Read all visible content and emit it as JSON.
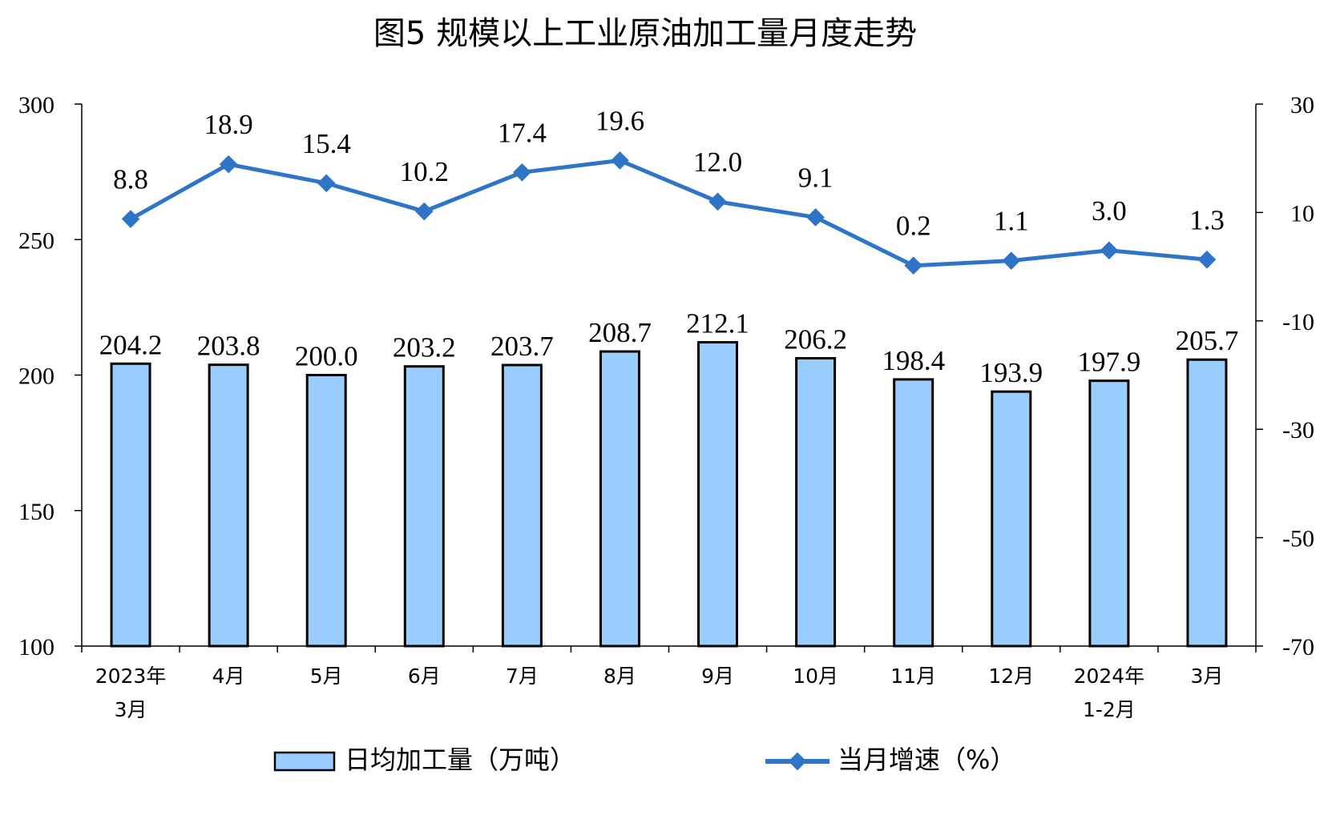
{
  "colors": {
    "bar_fill": "#99ccff",
    "bar_stroke": "#000000",
    "line": "#2e75c8"
  },
  "chart_data": {
    "type": "bar",
    "title": "图5 规模以上工业原油加工量月度走势",
    "categories": [
      [
        "2023年",
        "3月"
      ],
      [
        "4月"
      ],
      [
        "5月"
      ],
      [
        "6月"
      ],
      [
        "7月"
      ],
      [
        "8月"
      ],
      [
        "9月"
      ],
      [
        "10月"
      ],
      [
        "11月"
      ],
      [
        "12月"
      ],
      [
        "2024年",
        "1-2月"
      ],
      [
        "3月"
      ]
    ],
    "left_axis": {
      "ylim": [
        100,
        300
      ],
      "ticks": [
        "100",
        "150",
        "200",
        "250",
        "300"
      ]
    },
    "right_axis": {
      "ylim": [
        -70,
        30
      ],
      "ticks": [
        "-70",
        "-50",
        "-30",
        "-10",
        "10",
        "30"
      ]
    },
    "series": [
      {
        "name": "日均加工量（万吨）",
        "type": "bar",
        "axis": "left",
        "values": [
          204.2,
          203.8,
          200.0,
          203.2,
          203.7,
          208.7,
          212.1,
          206.2,
          198.4,
          193.9,
          197.9,
          205.7
        ],
        "labels": [
          "204.2",
          "203.8",
          "200.0",
          "203.2",
          "203.7",
          "208.7",
          "212.1",
          "206.2",
          "198.4",
          "193.9",
          "197.9",
          "205.7"
        ]
      },
      {
        "name": "当月增速（%）",
        "type": "line",
        "axis": "right",
        "values": [
          8.8,
          18.9,
          15.4,
          10.2,
          17.4,
          19.6,
          12.0,
          9.1,
          0.2,
          1.1,
          3.0,
          1.3
        ],
        "labels": [
          "8.8",
          "18.9",
          "15.4",
          "10.2",
          "17.4",
          "19.6",
          "12.0",
          "9.1",
          "0.2",
          "1.1",
          "3.0",
          "1.3"
        ]
      }
    ],
    "legend_position": "bottom",
    "grid": false
  }
}
